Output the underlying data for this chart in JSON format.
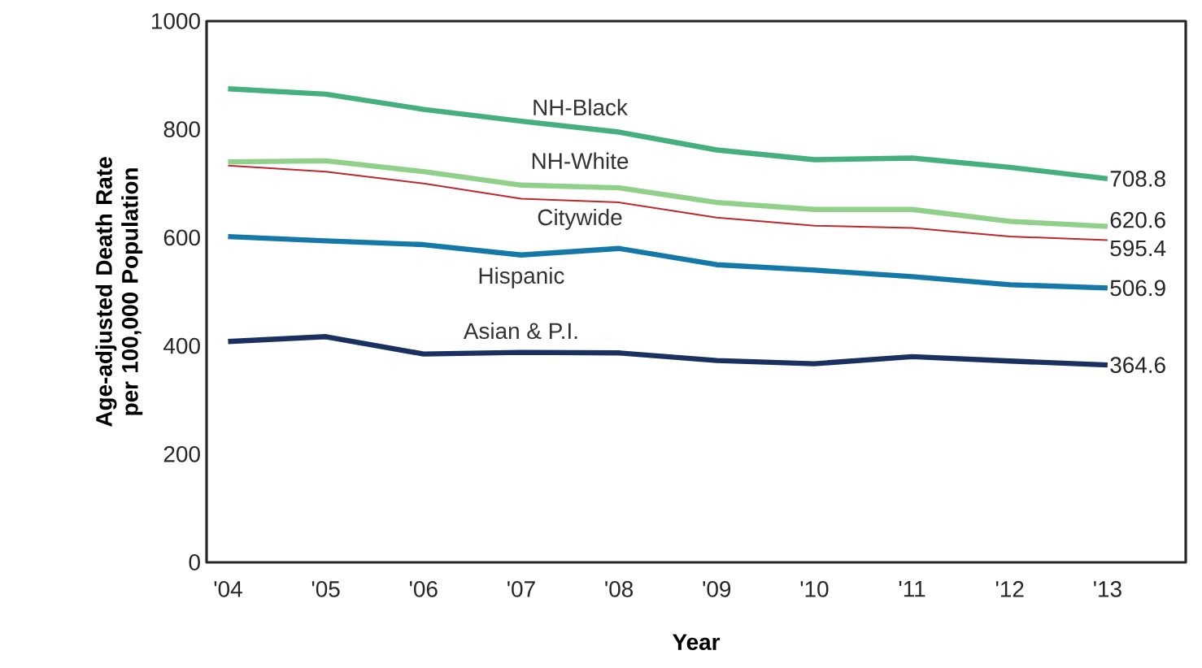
{
  "chart_data": {
    "type": "line",
    "xlabel": "Year",
    "ylabel": "Age-adjusted Death Rate per 100,000 Population",
    "categories": [
      "'04",
      "'05",
      "'06",
      "'07",
      "'08",
      "'09",
      "'10",
      "'11",
      "'12",
      "'13"
    ],
    "ylim": [
      0,
      1000
    ],
    "yticks": [
      0,
      200,
      400,
      600,
      800,
      1000
    ],
    "grid": false,
    "legend": false,
    "marker": "none",
    "line_style": "solid",
    "series": [
      {
        "name": "NH-Black",
        "color": "#45b07e",
        "values": [
          875,
          865,
          837,
          815,
          795,
          762,
          744,
          747,
          730,
          708.8
        ],
        "value_labels": [
          null,
          null,
          null,
          null,
          null,
          null,
          null,
          null,
          null,
          "708.8"
        ]
      },
      {
        "name": "NH-White",
        "color": "#90d08a",
        "values": [
          740,
          742,
          722,
          697,
          692,
          665,
          652,
          652,
          630,
          620.6
        ],
        "value_labels": [
          null,
          null,
          null,
          null,
          null,
          null,
          null,
          null,
          null,
          "620.6"
        ]
      },
      {
        "name": "Citywide",
        "color": "#c0272d",
        "values": [
          733,
          722,
          700,
          672,
          665,
          637,
          622,
          618,
          602,
          595.4
        ],
        "value_labels": [
          null,
          null,
          null,
          null,
          null,
          null,
          null,
          null,
          null,
          "595.4"
        ]
      },
      {
        "name": "Hispanic",
        "color": "#1479a8",
        "values": [
          602,
          594,
          587,
          568,
          580,
          550,
          540,
          528,
          513,
          506.9
        ],
        "value_labels": [
          null,
          null,
          null,
          null,
          null,
          null,
          null,
          null,
          null,
          "506.9"
        ]
      },
      {
        "name": "Asian & P.I.",
        "color": "#1a3060",
        "values": [
          408,
          417,
          385,
          388,
          387,
          373,
          367,
          380,
          372,
          364.6
        ],
        "value_labels": [
          null,
          null,
          null,
          null,
          null,
          null,
          null,
          null,
          null,
          "364.6"
        ]
      }
    ]
  }
}
